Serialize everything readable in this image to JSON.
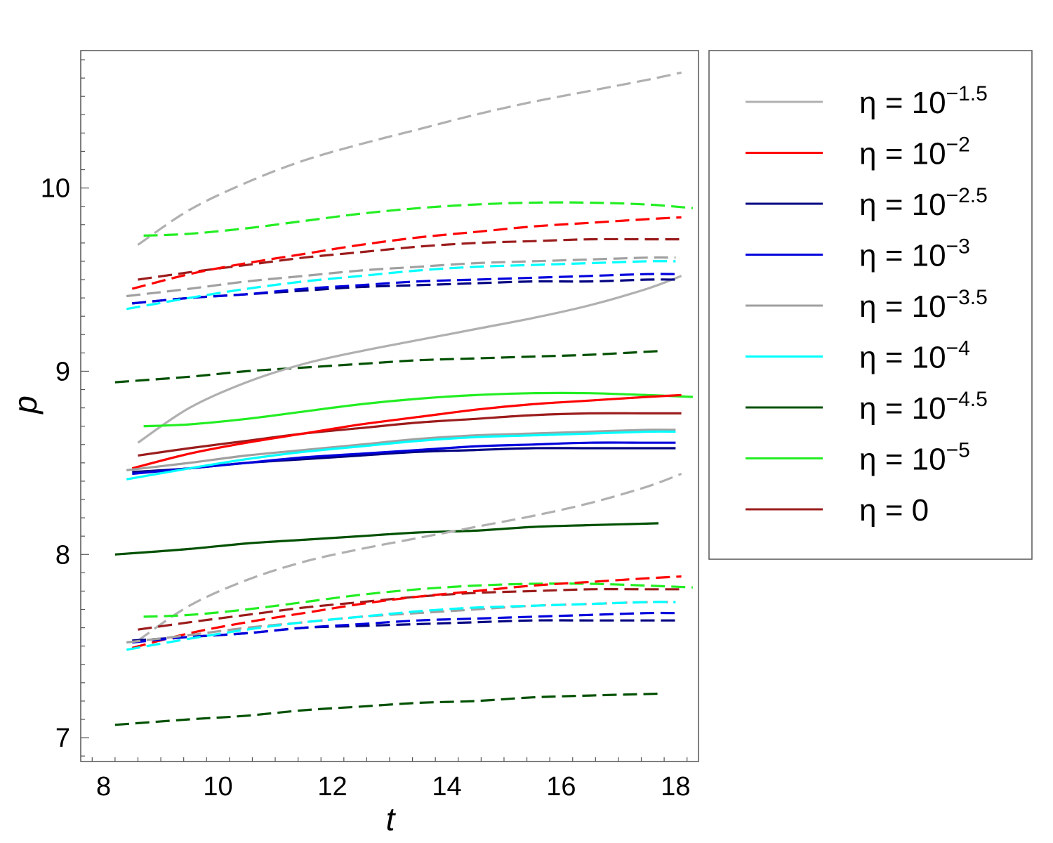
{
  "chart_data": {
    "type": "line",
    "xlabel": "t",
    "ylabel": "p",
    "xlim": [
      7.6,
      18.4
    ],
    "ylim": [
      6.87,
      10.75
    ],
    "xticks": [
      8,
      10,
      12,
      14,
      16,
      18
    ],
    "yticks": [
      7,
      8,
      9,
      10
    ],
    "x_tick_labels": [
      "8",
      "10",
      "12",
      "14",
      "16",
      "18"
    ],
    "y_tick_labels": [
      "7",
      "8",
      "9",
      "10"
    ],
    "legend_position": "right-outside",
    "series": [
      {
        "name": "η = 10^-1.5",
        "legend_prefix": "η = 10",
        "legend_exp": "−1.5",
        "color": "#b0b0b0",
        "x": [
          8.6,
          9.5,
          10.5,
          11.5,
          12.5,
          13.5,
          14.5,
          15.5,
          16.5,
          17.5,
          18.1
        ],
        "y": [
          8.61,
          8.8,
          8.94,
          9.04,
          9.11,
          9.17,
          9.23,
          9.29,
          9.36,
          9.45,
          9.52
        ],
        "upper": [
          9.69,
          9.88,
          10.03,
          10.15,
          10.24,
          10.32,
          10.4,
          10.47,
          10.53,
          10.59,
          10.63
        ],
        "lower": [
          7.53,
          7.72,
          7.86,
          7.96,
          8.03,
          8.09,
          8.15,
          8.21,
          8.28,
          8.37,
          8.44
        ]
      },
      {
        "name": "η = 10^-2",
        "legend_prefix": "η = 10",
        "legend_exp": "−2",
        "color": "#ff0000",
        "x": [
          8.5,
          9.5,
          10.5,
          11.5,
          12.5,
          13.5,
          14.5,
          15.5,
          16.5,
          17.5,
          18.1
        ],
        "y": [
          8.47,
          8.55,
          8.61,
          8.66,
          8.71,
          8.75,
          8.79,
          8.82,
          8.84,
          8.86,
          8.87
        ],
        "upper": [
          9.45,
          9.53,
          9.59,
          9.64,
          9.69,
          9.73,
          9.76,
          9.79,
          9.81,
          9.83,
          9.84
        ],
        "lower": [
          7.49,
          7.57,
          7.63,
          7.68,
          7.73,
          7.77,
          7.8,
          7.83,
          7.85,
          7.87,
          7.88
        ]
      },
      {
        "name": "η = 10^-2.5",
        "legend_prefix": "η = 10",
        "legend_exp": "−2.5",
        "color": "#000080",
        "x": [
          8.5,
          9.5,
          10.5,
          11.5,
          12.5,
          13.5,
          14.5,
          15.5,
          16.5,
          17.5,
          18.0
        ],
        "y": [
          8.45,
          8.47,
          8.5,
          8.52,
          8.54,
          8.56,
          8.57,
          8.58,
          8.58,
          8.58,
          8.58
        ],
        "upper": [
          9.37,
          9.4,
          9.42,
          9.44,
          9.46,
          9.47,
          9.48,
          9.49,
          9.49,
          9.5,
          9.5
        ],
        "lower": [
          7.53,
          7.55,
          7.57,
          7.6,
          7.61,
          7.62,
          7.63,
          7.64,
          7.64,
          7.64,
          7.64
        ]
      },
      {
        "name": "η = 10^-3",
        "legend_prefix": "η = 10",
        "legend_exp": "−3",
        "color": "#0000dd",
        "x": [
          8.5,
          9.5,
          10.5,
          11.5,
          12.5,
          13.5,
          14.5,
          15.5,
          16.5,
          17.5,
          18.0
        ],
        "y": [
          8.44,
          8.47,
          8.5,
          8.53,
          8.55,
          8.57,
          8.59,
          8.6,
          8.61,
          8.61,
          8.61
        ],
        "upper": [
          9.37,
          9.4,
          9.42,
          9.45,
          9.47,
          9.49,
          9.5,
          9.51,
          9.52,
          9.53,
          9.53
        ],
        "lower": [
          7.52,
          7.55,
          7.57,
          7.6,
          7.62,
          7.64,
          7.65,
          7.66,
          7.67,
          7.68,
          7.68
        ]
      },
      {
        "name": "η = 10^-3.5",
        "legend_prefix": "η = 10",
        "legend_exp": "−3.5",
        "color": "#a0a0a0",
        "x": [
          8.4,
          9.5,
          10.5,
          11.5,
          12.5,
          13.5,
          14.5,
          15.5,
          16.5,
          17.5,
          18.0
        ],
        "y": [
          8.46,
          8.5,
          8.54,
          8.57,
          8.6,
          8.63,
          8.65,
          8.66,
          8.67,
          8.68,
          8.68
        ],
        "upper": [
          9.41,
          9.45,
          9.49,
          9.52,
          9.55,
          9.57,
          9.59,
          9.6,
          9.61,
          9.62,
          9.62
        ],
        "lower": [
          7.52,
          7.56,
          7.6,
          7.63,
          7.66,
          7.68,
          7.7,
          7.72,
          7.73,
          7.74,
          7.74
        ]
      },
      {
        "name": "η = 10^-4",
        "legend_prefix": "η = 10",
        "legend_exp": "−4",
        "color": "#00ffff",
        "x": [
          8.4,
          9.5,
          10.5,
          11.5,
          12.5,
          13.5,
          14.5,
          15.5,
          16.5,
          17.5,
          18.0
        ],
        "y": [
          8.41,
          8.47,
          8.52,
          8.56,
          8.59,
          8.62,
          8.64,
          8.65,
          8.66,
          8.67,
          8.67
        ],
        "upper": [
          9.34,
          9.4,
          9.45,
          9.49,
          9.52,
          9.55,
          9.57,
          9.58,
          9.59,
          9.6,
          9.6
        ],
        "lower": [
          7.48,
          7.54,
          7.59,
          7.63,
          7.66,
          7.69,
          7.71,
          7.72,
          7.73,
          7.74,
          7.74
        ]
      },
      {
        "name": "η = 10^-4.5",
        "legend_prefix": "η = 10",
        "legend_exp": "−4.5",
        "color": "#005000",
        "x": [
          8.2,
          9.5,
          10.5,
          11.5,
          12.5,
          13.5,
          14.5,
          15.5,
          16.5,
          17.7
        ],
        "y": [
          8.0,
          8.03,
          8.06,
          8.08,
          8.1,
          8.12,
          8.13,
          8.15,
          8.16,
          8.17
        ],
        "upper": [
          8.94,
          8.97,
          9.0,
          9.02,
          9.04,
          9.06,
          9.07,
          9.08,
          9.09,
          9.11
        ],
        "lower": [
          7.07,
          7.1,
          7.12,
          7.15,
          7.17,
          7.19,
          7.2,
          7.22,
          7.23,
          7.24
        ]
      },
      {
        "name": "η = 10^-5",
        "legend_prefix": "η = 10",
        "legend_exp": "−5",
        "color": "#22ee22",
        "x": [
          8.7,
          9.5,
          10.5,
          11.5,
          12.5,
          13.5,
          14.5,
          15.5,
          16.5,
          17.5,
          18.3
        ],
        "y": [
          8.7,
          8.71,
          8.74,
          8.78,
          8.82,
          8.85,
          8.87,
          8.88,
          8.88,
          8.87,
          8.86
        ],
        "upper": [
          9.74,
          9.75,
          9.78,
          9.82,
          9.86,
          9.89,
          9.91,
          9.92,
          9.92,
          9.91,
          9.89
        ],
        "lower": [
          7.66,
          7.67,
          7.7,
          7.74,
          7.78,
          7.81,
          7.83,
          7.84,
          7.84,
          7.83,
          7.82
        ]
      },
      {
        "name": "η = 0",
        "legend_prefix": "η = 0",
        "legend_exp": "",
        "color": "#9b1c1c",
        "x": [
          8.6,
          9.5,
          10.5,
          11.5,
          12.5,
          13.5,
          14.5,
          15.5,
          16.5,
          17.5,
          18.1
        ],
        "y": [
          8.54,
          8.58,
          8.62,
          8.66,
          8.69,
          8.72,
          8.74,
          8.76,
          8.77,
          8.77,
          8.77
        ],
        "upper": [
          9.5,
          9.54,
          9.58,
          9.62,
          9.65,
          9.68,
          9.7,
          9.71,
          9.72,
          9.72,
          9.72
        ],
        "lower": [
          7.59,
          7.63,
          7.67,
          7.71,
          7.74,
          7.77,
          7.79,
          7.8,
          7.81,
          7.81,
          7.81
        ]
      }
    ]
  }
}
